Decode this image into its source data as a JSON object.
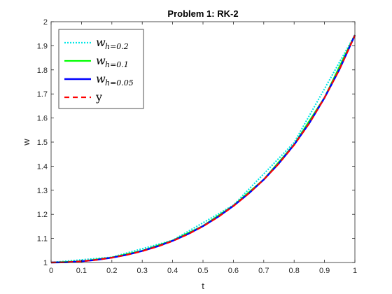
{
  "chart_data": {
    "type": "line",
    "title": "Problem 1: RK-2",
    "xlabel": "t",
    "ylabel": "w",
    "xlim": [
      0,
      1
    ],
    "ylim": [
      1,
      2
    ],
    "xticks": [
      "0",
      "0.1",
      "0.2",
      "0.3",
      "0.4",
      "0.5",
      "0.6",
      "0.7",
      "0.8",
      "0.9",
      "1"
    ],
    "yticks": [
      "1",
      "1.1",
      "1.2",
      "1.3",
      "1.4",
      "1.5",
      "1.6",
      "1.7",
      "1.8",
      "1.9",
      "2"
    ],
    "grid": false,
    "legend_location": "top-left",
    "series": [
      {
        "legend_main": "w",
        "legend_sub": "h=0.2",
        "color": "#00e6e6",
        "style": "dotted",
        "x": [
          0,
          0.2,
          0.4,
          0.6,
          0.8,
          1.0
        ],
        "y": [
          1.0,
          1.022,
          1.092,
          1.238,
          1.498,
          1.945
        ]
      },
      {
        "legend_main": "w",
        "legend_sub": "h=0.1",
        "color": "#00ff00",
        "style": "solid",
        "x": [
          0,
          0.1,
          0.2,
          0.3,
          0.4,
          0.5,
          0.6,
          0.7,
          0.8,
          0.9,
          1.0
        ],
        "y": [
          1.0,
          1.005,
          1.021,
          1.049,
          1.091,
          1.152,
          1.236,
          1.345,
          1.49,
          1.685,
          1.945
        ]
      },
      {
        "legend_main": "w",
        "legend_sub": "h=0.05",
        "color": "#0000ff",
        "style": "solid",
        "x": [
          0,
          0.05,
          0.1,
          0.15,
          0.2,
          0.25,
          0.3,
          0.35,
          0.4,
          0.45,
          0.5,
          0.55,
          0.6,
          0.65,
          0.7,
          0.75,
          0.8,
          0.85,
          0.9,
          0.95,
          1.0
        ],
        "y": [
          1.0,
          1.001,
          1.005,
          1.011,
          1.02,
          1.032,
          1.048,
          1.067,
          1.09,
          1.118,
          1.151,
          1.19,
          1.235,
          1.286,
          1.344,
          1.412,
          1.489,
          1.579,
          1.684,
          1.804,
          1.944
        ]
      },
      {
        "legend_main": "y",
        "legend_sub": "",
        "color": "#ff0000",
        "style": "dashed",
        "x": [
          0,
          0.05,
          0.1,
          0.15,
          0.2,
          0.25,
          0.3,
          0.35,
          0.4,
          0.45,
          0.5,
          0.55,
          0.6,
          0.65,
          0.7,
          0.75,
          0.8,
          0.85,
          0.9,
          0.95,
          1.0
        ],
        "y": [
          1.0,
          1.001,
          1.005,
          1.011,
          1.02,
          1.032,
          1.047,
          1.066,
          1.089,
          1.117,
          1.15,
          1.189,
          1.234,
          1.286,
          1.344,
          1.411,
          1.488,
          1.578,
          1.684,
          1.804,
          1.943
        ]
      }
    ]
  }
}
